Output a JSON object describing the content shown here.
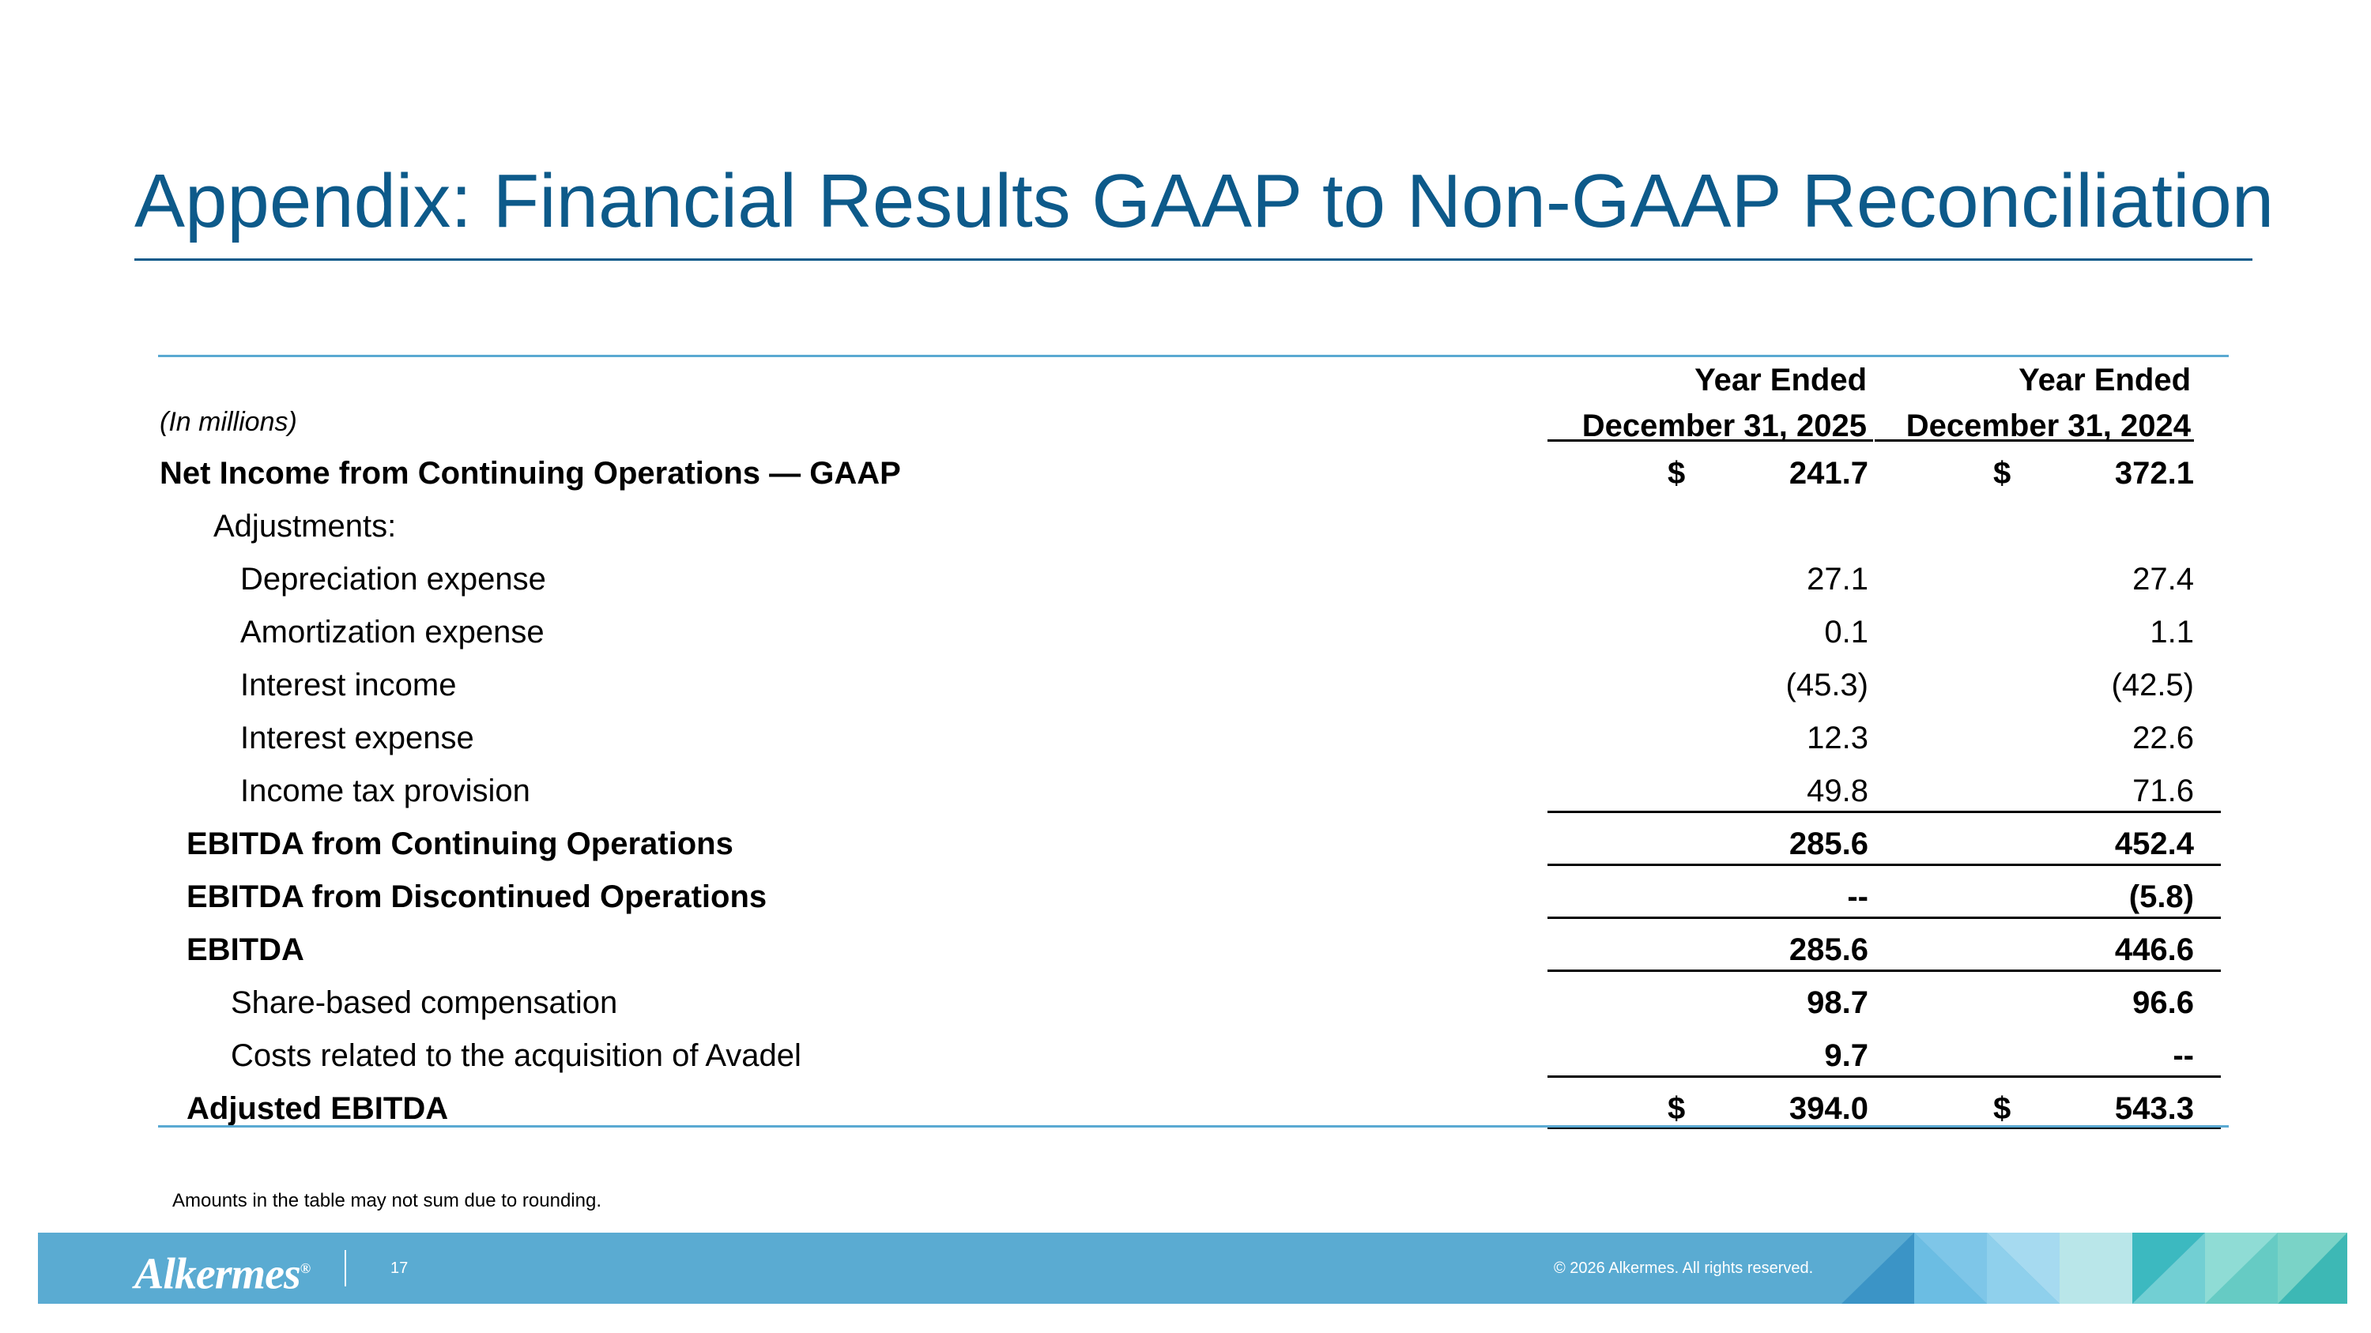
{
  "slide": {
    "title": "Appendix: Financial Results GAAP to Non-GAAP Reconciliation",
    "units": "(In millions)",
    "columns": [
      {
        "line1": "Year Ended",
        "line2": "December 31, 2025"
      },
      {
        "line1": "Year Ended",
        "line2": "December 31, 2024"
      }
    ],
    "rows": [
      {
        "label": "Net Income from Continuing Operations — GAAP",
        "v2025": "241.7",
        "v2024": "372.1",
        "dollar": "$"
      },
      {
        "label": "Adjustments:",
        "v2025": "",
        "v2024": ""
      },
      {
        "label": "Depreciation expense",
        "v2025": "27.1",
        "v2024": "27.4"
      },
      {
        "label": "Amortization expense",
        "v2025": "0.1",
        "v2024": "1.1"
      },
      {
        "label": "Interest income",
        "v2025": "(45.3)",
        "v2024": "(42.5)"
      },
      {
        "label": "Interest expense",
        "v2025": "12.3",
        "v2024": "22.6"
      },
      {
        "label": "Income tax provision",
        "v2025": "49.8",
        "v2024": "71.6"
      },
      {
        "label": "EBITDA from Continuing Operations",
        "v2025": "285.6",
        "v2024": "452.4"
      },
      {
        "label": "EBITDA from Discontinued Operations",
        "v2025": "--",
        "v2024": "(5.8)"
      },
      {
        "label": "EBITDA",
        "v2025": "285.6",
        "v2024": "446.6"
      },
      {
        "label": "Share-based compensation",
        "v2025": "98.7",
        "v2024": "96.6"
      },
      {
        "label": "Costs related to the acquisition of Avadel",
        "v2025": "9.7",
        "v2024": "--"
      },
      {
        "label": "Adjusted EBITDA",
        "v2025": "394.0",
        "v2024": "543.3",
        "dollar": "$"
      }
    ],
    "footnote": "Amounts in the table may not sum due to rounding."
  },
  "footer": {
    "logo_text": "Alkermes",
    "logo_mark": "®",
    "page_number": "17",
    "copyright": "© 2026 Alkermes. All rights reserved.",
    "bar_color": "#5aabd2"
  },
  "colors": {
    "title": "#0d5a8a",
    "table_rule": "#5aa9d2"
  }
}
